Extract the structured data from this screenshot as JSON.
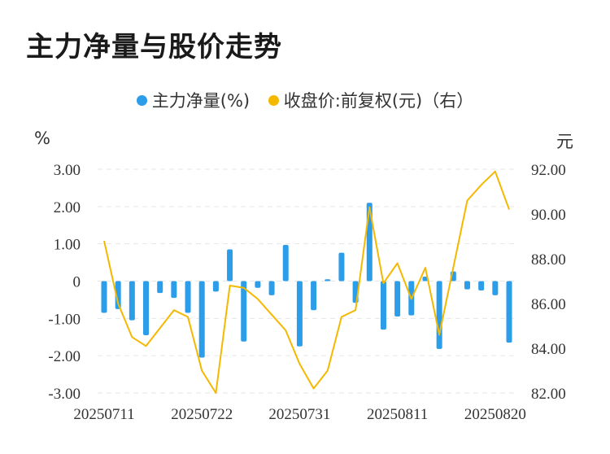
{
  "chart_data": {
    "type": "bar+line",
    "title": "主力净量与股价走势",
    "legend": [
      {
        "name": "主力净量(%)",
        "color": "#2b9de9"
      },
      {
        "name": "收盘价:前复权(元)（右）",
        "color": "#f5b800"
      }
    ],
    "legend_position": "top-center",
    "y_left_unit": "%",
    "y_right_unit": "元",
    "y_left_ticks": [
      "3.00",
      "2.00",
      "1.00",
      "0",
      "-1.00",
      "-2.00",
      "-3.00"
    ],
    "y_right_ticks": [
      "92.00",
      "90.00",
      "88.00",
      "86.00",
      "84.00",
      "82.00"
    ],
    "ylim_left": [
      -3,
      3
    ],
    "ylim_right": [
      82,
      92
    ],
    "x_tick_labels": [
      "20250711",
      "20250722",
      "20250731",
      "20250811",
      "20250820"
    ],
    "x_tick_indices": [
      0,
      7,
      14,
      21,
      28
    ],
    "grid": true,
    "series": [
      {
        "name": "主力净量(%)",
        "type": "bar",
        "values": [
          -0.85,
          -0.75,
          -1.05,
          -1.45,
          -0.32,
          -0.45,
          -0.85,
          -2.05,
          -0.28,
          0.85,
          -1.62,
          -0.18,
          -0.38,
          0.97,
          -1.75,
          -0.78,
          0.05,
          0.76,
          -0.58,
          2.1,
          -1.3,
          -0.95,
          -0.92,
          0.12,
          -1.82,
          0.26,
          -0.22,
          -0.25,
          -0.38,
          -1.65
        ]
      },
      {
        "name": "收盘价:前复权(元)（右）",
        "type": "line",
        "values": [
          88.8,
          86.0,
          84.5,
          84.1,
          84.9,
          85.7,
          85.4,
          83.0,
          82.0,
          86.8,
          86.7,
          86.2,
          85.5,
          84.8,
          83.3,
          82.2,
          83.0,
          85.4,
          85.7,
          90.3,
          86.9,
          87.8,
          86.2,
          87.6,
          84.6,
          87.6,
          90.6,
          91.3,
          91.9,
          90.2
        ]
      }
    ]
  }
}
